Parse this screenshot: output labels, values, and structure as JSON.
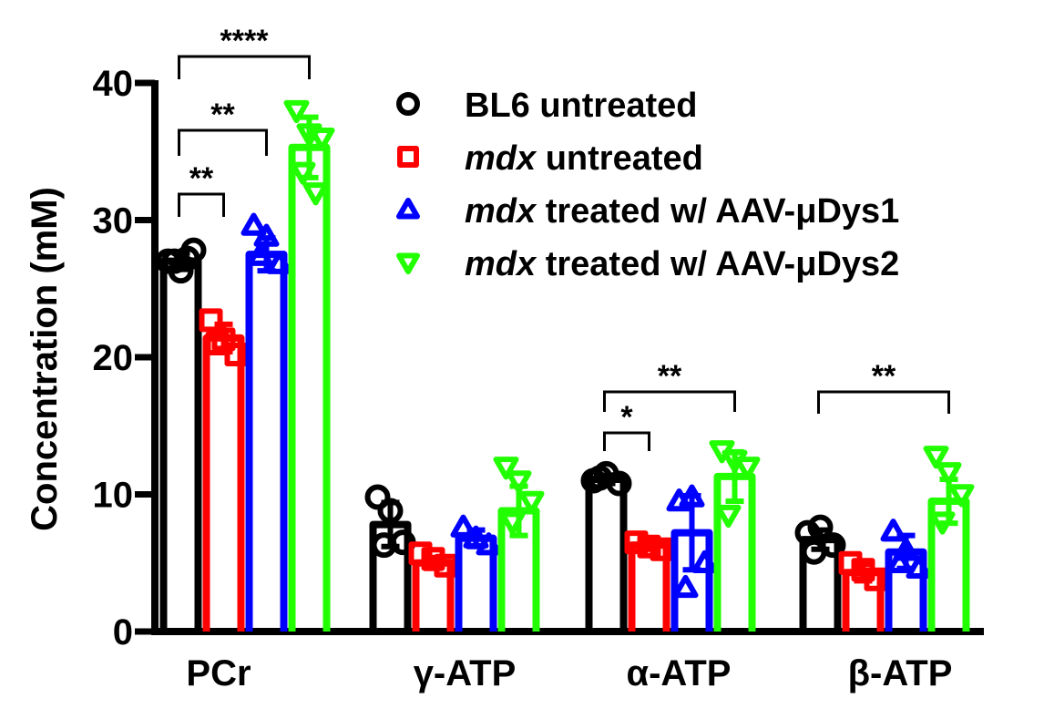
{
  "chart_data": {
    "type": "bar",
    "title": "",
    "xlabel": "",
    "ylabel": "Concentration (mM)",
    "ylim": [
      0,
      40
    ],
    "yticks": [
      "0",
      "10",
      "20",
      "30",
      "40"
    ],
    "categories": [
      "PCr",
      "γ-ATP",
      "α-ATP",
      "β-ATP"
    ],
    "series": [
      {
        "name": "BL6 untreated",
        "name_italic": "",
        "name_rest": "BL6 untreated",
        "color": "#000000",
        "marker": "circle",
        "values": [
          27.0,
          7.8,
          11.1,
          6.7
        ],
        "points": [
          [
            27,
            26.3,
            27.8,
            27.0,
            27.2
          ],
          [
            9.8,
            8.8,
            6.5,
            6.3
          ],
          [
            11.0,
            11.5,
            10.8,
            11.2
          ],
          [
            7.2,
            7.6,
            6.3,
            5.8
          ]
        ],
        "errors": [
          0.6,
          1.6,
          0.3,
          0.7
        ]
      },
      {
        "name": "mdx untreated",
        "name_italic": "mdx",
        "name_rest": " untreated",
        "color": "#ff0000",
        "marker": "square",
        "values": [
          21.4,
          5.0,
          6.3,
          4.3
        ],
        "points": [
          [
            22.7,
            21.3,
            20.2,
            21.0
          ],
          [
            5.7,
            5.3,
            4.8
          ],
          [
            6.5,
            6.2,
            6.0
          ],
          [
            5.0,
            4.5,
            3.8
          ]
        ],
        "errors": [
          1.0,
          0.4,
          0.3,
          0.6
        ]
      },
      {
        "name": "mdx treated w/ AAV-μDys1",
        "name_italic": "mdx",
        "name_rest": " treated w/ AAV-μDys1",
        "color": "#0000ff",
        "marker": "triangle-up",
        "values": [
          27.5,
          6.8,
          7.2,
          5.8
        ],
        "points": [
          [
            29.6,
            28.8,
            26.8,
            27.4
          ],
          [
            7.6,
            6.8,
            6.3
          ],
          [
            9.5,
            9.8,
            5.0,
            3.2
          ],
          [
            7.3,
            5.9,
            4.6,
            5.0
          ]
        ],
        "errors": [
          1.2,
          0.6,
          2.7,
          1.2
        ]
      },
      {
        "name": "mdx treated w/ AAV-μDys2",
        "name_italic": "mdx",
        "name_rest": " treated w/ AAV-μDys2",
        "color": "#22ff00",
        "marker": "triangle-down",
        "values": [
          35.3,
          8.8,
          11.3,
          9.5
        ],
        "points": [
          [
            38.0,
            36.3,
            36.0,
            33.5,
            32.0
          ],
          [
            12.0,
            11.0,
            9.5,
            8.0
          ],
          [
            13.2,
            12.5,
            12.0,
            8.5
          ],
          [
            12.8,
            11.6,
            10.0,
            8.0
          ]
        ],
        "errors": [
          2.2,
          1.8,
          1.8,
          1.6
        ]
      }
    ],
    "significance": [
      {
        "category": "PCr",
        "from": 0,
        "to": 1,
        "label": "**",
        "level": 1
      },
      {
        "category": "PCr",
        "from": 0,
        "to": 2,
        "label": "**",
        "level": 2
      },
      {
        "category": "PCr",
        "from": 0,
        "to": 3,
        "label": "****",
        "level": 3
      },
      {
        "category": "α-ATP",
        "from": 0,
        "to": 1,
        "label": "*",
        "level": 1
      },
      {
        "category": "α-ATP",
        "from": 0,
        "to": 3,
        "label": "**",
        "level": 2
      },
      {
        "category": "β-ATP",
        "from": 0,
        "to": 3,
        "label": "**",
        "level": 1
      }
    ],
    "legend": "top-right",
    "grid": false
  }
}
